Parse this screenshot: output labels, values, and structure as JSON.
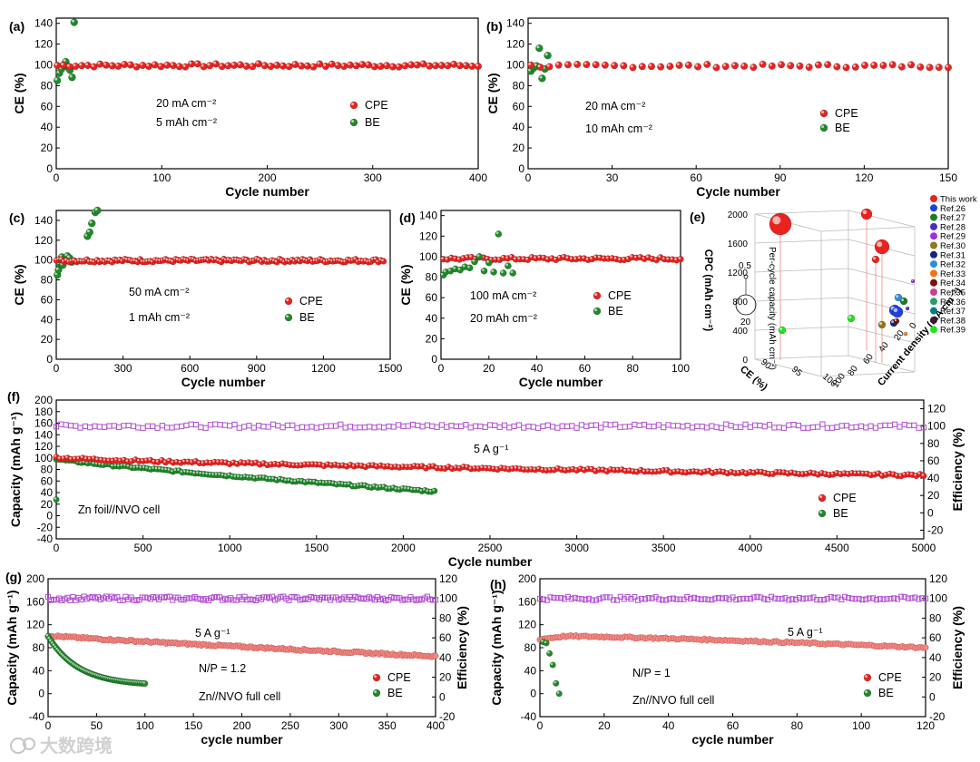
{
  "colors": {
    "cpe": "#e8231f",
    "be": "#1f8a2a",
    "eff": "#b04fd0",
    "cpe_light": "#ef8a86"
  },
  "chart_data": [
    {
      "id": "a",
      "type": "scatter",
      "panel_label": "(a)",
      "xlabel": "Cycle number",
      "ylabel": "CE (%)",
      "xlim": [
        0,
        400
      ],
      "ylim": [
        0,
        145
      ],
      "xticks": [
        "0",
        "100",
        "200",
        "300",
        "400"
      ],
      "yticks": [
        "0",
        "20",
        "40",
        "60",
        "80",
        "100",
        "120",
        "140"
      ],
      "annotations": [
        "20 mA cm⁻²",
        "5 mAh cm⁻²"
      ],
      "legend": [
        "CPE",
        "BE"
      ],
      "series": [
        {
          "name": "CPE",
          "x_range": [
            1,
            400
          ],
          "count": 70,
          "mean": 99.5
        },
        {
          "name": "BE",
          "x": [
            1,
            3,
            5,
            7,
            9,
            11,
            13,
            15,
            17
          ],
          "y": [
            85,
            92,
            96,
            100,
            103,
            98,
            95,
            88,
            141
          ]
        }
      ]
    },
    {
      "id": "b",
      "type": "scatter",
      "panel_label": "(b)",
      "xlabel": "Cycle number",
      "ylabel": "CE (%)",
      "xlim": [
        0,
        150
      ],
      "ylim": [
        0,
        145
      ],
      "xticks": [
        "0",
        "30",
        "60",
        "90",
        "120",
        "150"
      ],
      "yticks": [
        "0",
        "20",
        "40",
        "60",
        "80",
        "100",
        "120",
        "140"
      ],
      "annotations": [
        "20 mA cm⁻²",
        "10 mAh cm⁻²"
      ],
      "legend": [
        "CPE",
        "BE"
      ],
      "series": [
        {
          "name": "CPE",
          "x_range": [
            1,
            150
          ],
          "count": 46,
          "mean": 99.0
        },
        {
          "name": "BE",
          "x": [
            1,
            2,
            3,
            4,
            5,
            6,
            7
          ],
          "y": [
            94,
            97,
            99,
            116,
            87,
            96,
            109
          ]
        }
      ]
    },
    {
      "id": "c",
      "type": "scatter",
      "panel_label": "(c)",
      "xlabel": "Cycle number",
      "ylabel": "CE (%)",
      "xlim": [
        0,
        1500
      ],
      "ylim": [
        0,
        150
      ],
      "xticks": [
        "0",
        "300",
        "600",
        "900",
        "1200",
        "1500"
      ],
      "yticks": [
        "0",
        "20",
        "40",
        "60",
        "80",
        "100",
        "120",
        "140"
      ],
      "annotations": [
        "50 mA cm⁻²",
        "1 mAh cm⁻²"
      ],
      "legend": [
        "CPE",
        "BE"
      ],
      "series": [
        {
          "name": "CPE",
          "x_range": [
            1,
            1470
          ],
          "count": 130,
          "mean": 99.5
        },
        {
          "name": "BE",
          "x": [
            5,
            10,
            15,
            20,
            25,
            30,
            40,
            50,
            60,
            70,
            140,
            150,
            160,
            175,
            185
          ],
          "y": [
            85,
            90,
            96,
            100,
            103,
            95,
            100,
            104,
            102,
            98,
            124,
            128,
            137,
            148,
            150
          ]
        }
      ]
    },
    {
      "id": "d",
      "type": "scatter",
      "panel_label": "(d)",
      "xlabel": "Cycle number",
      "ylabel": "CE (%)",
      "xlim": [
        0,
        100
      ],
      "ylim": [
        0,
        145
      ],
      "xticks": [
        "0",
        "20",
        "40",
        "60",
        "80",
        "100"
      ],
      "yticks": [
        "0",
        "20",
        "40",
        "60",
        "80",
        "100",
        "120",
        "140"
      ],
      "annotations": [
        "100 mA cm⁻²",
        "20 mAh cm⁻²"
      ],
      "legend": [
        "CPE",
        "BE"
      ],
      "series": [
        {
          "name": "CPE",
          "x_range": [
            1,
            100
          ],
          "count": 60,
          "mean": 98.0
        },
        {
          "name": "BE",
          "x": [
            1,
            2,
            4,
            6,
            8,
            10,
            12,
            14,
            16,
            18,
            20,
            22,
            24,
            26,
            28,
            30
          ],
          "y": [
            82,
            85,
            86,
            88,
            87,
            90,
            89,
            95,
            100,
            86,
            94,
            85,
            122,
            84,
            91,
            84
          ]
        }
      ]
    },
    {
      "id": "e",
      "type": "scatter3d",
      "panel_label": "(e)",
      "zlabel": "CPC (mAh cm⁻²)",
      "xlabel": "CE (%)",
      "ylabel": "Current density (mA cm⁻²)",
      "zticks": [
        "0",
        "400",
        "800",
        "1200",
        "1600",
        "2000"
      ],
      "xticks": [
        "90",
        "95",
        "100"
      ],
      "yticks": [
        "100",
        "80",
        "60",
        "40",
        "20",
        "0"
      ],
      "size_legend_title": "Per-cycle capacity (mAh cm⁻²)",
      "size_legend_values": [
        "0.5",
        "20"
      ],
      "legend": [
        "This work",
        "Ref.26",
        "Ref.27",
        "Ref.28",
        "Ref.29",
        "Ref.30",
        "Ref.31",
        "Ref.32",
        "Ref.33",
        "Ref.34",
        "Ref.35",
        "Ref.36",
        "Ref.37",
        "Ref.38",
        "Ref.39"
      ],
      "legend_colors": [
        "#e8231f",
        "#1f3fe0",
        "#1f7a1f",
        "#4b2bc9",
        "#9b30e0",
        "#8c7a1c",
        "#1a237e",
        "#2b8fd8",
        "#f0731a",
        "#7a1010",
        "#c8409a",
        "#2a9d6a",
        "#0a7a7a",
        "#3a1a3a",
        "#22e022"
      ]
    },
    {
      "id": "f",
      "type": "scatter",
      "panel_label": "(f)",
      "xlabel": "Cycle number",
      "ylabel": "Capacity  (mAh g⁻¹)",
      "y2label": "Efficiency (%)",
      "xlim": [
        0,
        5000
      ],
      "ylim": [
        -40,
        200
      ],
      "y2lim": [
        -30,
        130
      ],
      "xticks": [
        "0",
        "500",
        "1000",
        "1500",
        "2000",
        "2500",
        "3000",
        "3500",
        "4000",
        "4500",
        "5000"
      ],
      "yticks": [
        "-40",
        "-20",
        "0",
        "20",
        "40",
        "60",
        "80",
        "100",
        "120",
        "140",
        "160",
        "180",
        "200"
      ],
      "y2ticks": [
        "-20",
        "0",
        "20",
        "40",
        "60",
        "80",
        "100",
        "120"
      ],
      "annotations": [
        "5 A g⁻¹",
        "Zn foil//NVO cell"
      ],
      "legend": [
        "CPE",
        "BE"
      ],
      "series": [
        {
          "name": "CPE",
          "start": 101,
          "end": 70
        },
        {
          "name": "BE",
          "start": 98,
          "end": 42,
          "x_end": 2180
        },
        {
          "name": "Efficiency",
          "mean": 100
        }
      ]
    },
    {
      "id": "g",
      "type": "scatter",
      "panel_label": "(g)",
      "xlabel": "cycle number",
      "ylabel": "Capacity (mAh g⁻¹)",
      "y2label": "Efficiency (%)",
      "xlim": [
        0,
        400
      ],
      "ylim": [
        -40,
        200
      ],
      "y2lim": [
        -20,
        120
      ],
      "xticks": [
        "0",
        "50",
        "100",
        "150",
        "200",
        "250",
        "300",
        "350",
        "400"
      ],
      "yticks": [
        "-40",
        "0",
        "40",
        "80",
        "120",
        "160",
        "200"
      ],
      "y2ticks": [
        "-20",
        "0",
        "20",
        "40",
        "60",
        "80",
        "100",
        "120"
      ],
      "annotations": [
        "5 A g⁻¹",
        "N/P = 1.2",
        "Zn//NVO full cell"
      ],
      "legend": [
        "CPE",
        "BE"
      ],
      "series": [
        {
          "name": "CPE",
          "start": 101,
          "end": 65
        },
        {
          "name": "BE",
          "start": 100,
          "end": 14,
          "x_end": 100
        },
        {
          "name": "Efficiency",
          "mean": 100
        }
      ]
    },
    {
      "id": "h",
      "type": "scatter",
      "panel_label": "(h)",
      "xlabel": "cycle number",
      "ylabel": "Capacity (mAh g⁻¹)",
      "y2label": "Efficiency (%)",
      "xlim": [
        0,
        120
      ],
      "ylim": [
        -40,
        200
      ],
      "y2lim": [
        -20,
        120
      ],
      "xticks": [
        "0",
        "20",
        "40",
        "60",
        "80",
        "100",
        "120"
      ],
      "yticks": [
        "-40",
        "0",
        "40",
        "80",
        "120",
        "160",
        "200"
      ],
      "y2ticks": [
        "-20",
        "0",
        "20",
        "40",
        "60",
        "80",
        "100",
        "120"
      ],
      "annotations": [
        "5 A g⁻¹",
        "N/P = 1",
        "Zn//NVO full cell"
      ],
      "legend": [
        "CPE",
        "BE"
      ],
      "series": [
        {
          "name": "CPE",
          "start": 95,
          "peak": 100,
          "end": 80
        },
        {
          "name": "BE",
          "x": [
            1,
            2,
            3,
            4,
            5,
            6
          ],
          "y": [
            90,
            88,
            70,
            50,
            18,
            0
          ]
        },
        {
          "name": "Efficiency",
          "mean": 100
        }
      ]
    }
  ],
  "watermark": "大数跨境"
}
